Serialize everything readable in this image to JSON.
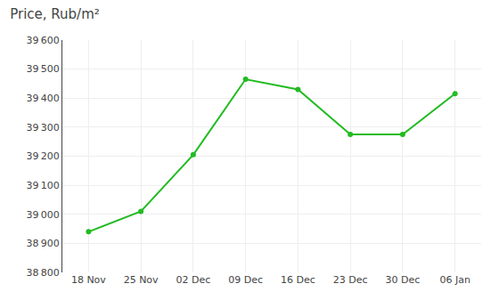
{
  "chart_data": {
    "type": "line",
    "title": "Price, Rub/m²",
    "categories": [
      "18 Nov",
      "25 Nov",
      "02 Dec",
      "09 Dec",
      "16 Dec",
      "23 Dec",
      "30 Dec",
      "06 Jan"
    ],
    "values": [
      38940,
      39010,
      39205,
      39465,
      39430,
      39275,
      39275,
      39415
    ],
    "color": "#22bb22",
    "marker": "circle",
    "ylim": [
      38800,
      39600
    ],
    "yticks": [
      {
        "value": 38800,
        "label": "38 800"
      },
      {
        "value": 38900,
        "label": "38 900"
      },
      {
        "value": 39000,
        "label": "39 000"
      },
      {
        "value": 39100,
        "label": "39 100"
      },
      {
        "value": 39200,
        "label": "39 200"
      },
      {
        "value": 39300,
        "label": "39 300"
      },
      {
        "value": 39400,
        "label": "39 400"
      },
      {
        "value": 39500,
        "label": "39 500"
      },
      {
        "value": 39600,
        "label": "39 600"
      }
    ],
    "grid": true
  }
}
